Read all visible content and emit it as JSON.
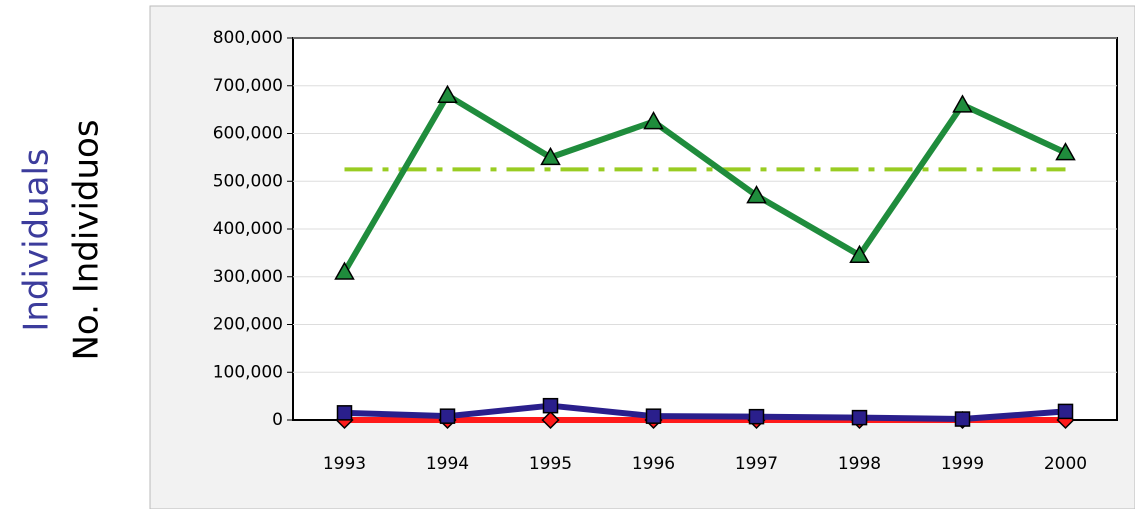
{
  "chart_data": {
    "type": "line",
    "y_labels": [
      "Individuals",
      "No. Individuos"
    ],
    "y_label_colors": [
      "#3c3c9c",
      "#000000"
    ],
    "categories": [
      "1993",
      "1994",
      "1995",
      "1996",
      "1997",
      "1998",
      "1999",
      "2000"
    ],
    "series": [
      {
        "color": "#1f8c3c",
        "marker": "triangle",
        "values": [
          310000,
          680000,
          550000,
          625000,
          470000,
          345000,
          660000,
          560000
        ]
      },
      {
        "color": "#2a1f8c",
        "marker": "square",
        "values": [
          15000,
          8000,
          30000,
          8000,
          7000,
          5000,
          2000,
          18000
        ]
      },
      {
        "color": "#ff1a1a",
        "marker": "diamond",
        "values": [
          0,
          0,
          0,
          0,
          0,
          0,
          0,
          0
        ]
      }
    ],
    "reference_line": {
      "value": 525000,
      "color": "#99cc22"
    },
    "ylim": [
      0,
      800000
    ],
    "yticks": [
      {
        "value": 0,
        "label": "0"
      },
      {
        "value": 100000,
        "label": "100,000"
      },
      {
        "value": 200000,
        "label": "200,000"
      },
      {
        "value": 300000,
        "label": "300,000"
      },
      {
        "value": 400000,
        "label": "400,000"
      },
      {
        "value": 500000,
        "label": "500,000"
      },
      {
        "value": 600000,
        "label": "600,000"
      },
      {
        "value": 700000,
        "label": "700,000"
      },
      {
        "value": 800000,
        "label": "800,000"
      }
    ],
    "grid": true
  }
}
